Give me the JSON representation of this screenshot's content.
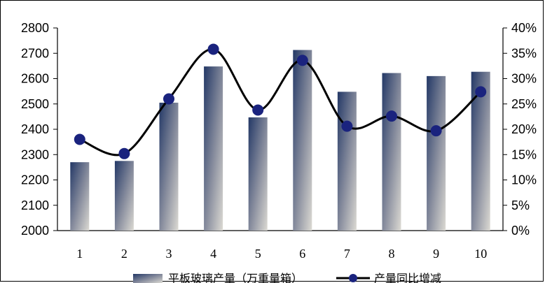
{
  "chart_data": {
    "type": "bar",
    "categories": [
      "1",
      "2",
      "3",
      "4",
      "5",
      "6",
      "7",
      "8",
      "9",
      "10"
    ],
    "series": [
      {
        "name": "平板玻璃产量（万重量箱）",
        "type": "bar",
        "axis": "left",
        "values": [
          2270,
          2275,
          2505,
          2648,
          2447,
          2713,
          2548,
          2622,
          2610,
          2627
        ]
      },
      {
        "name": "产量同比增减",
        "type": "line",
        "axis": "right",
        "values": [
          18.0,
          15.2,
          26.0,
          35.8,
          23.8,
          33.6,
          20.6,
          22.6,
          19.7,
          27.4
        ]
      }
    ],
    "y_left": {
      "min": 2000,
      "max": 2800,
      "ticks": [
        "2000",
        "2100",
        "2200",
        "2300",
        "2400",
        "2500",
        "2600",
        "2700",
        "2800"
      ]
    },
    "y_right": {
      "min": 0,
      "max": 40,
      "ticks": [
        "0%",
        "5%",
        "10%",
        "15%",
        "20%",
        "25%",
        "30%",
        "35%",
        "40%"
      ]
    },
    "grid": false,
    "legend_position": "bottom",
    "colors": {
      "bar_dark": "#233866",
      "bar_light": "#dcdad3",
      "line": "#000000",
      "marker": "#1a237e"
    }
  }
}
